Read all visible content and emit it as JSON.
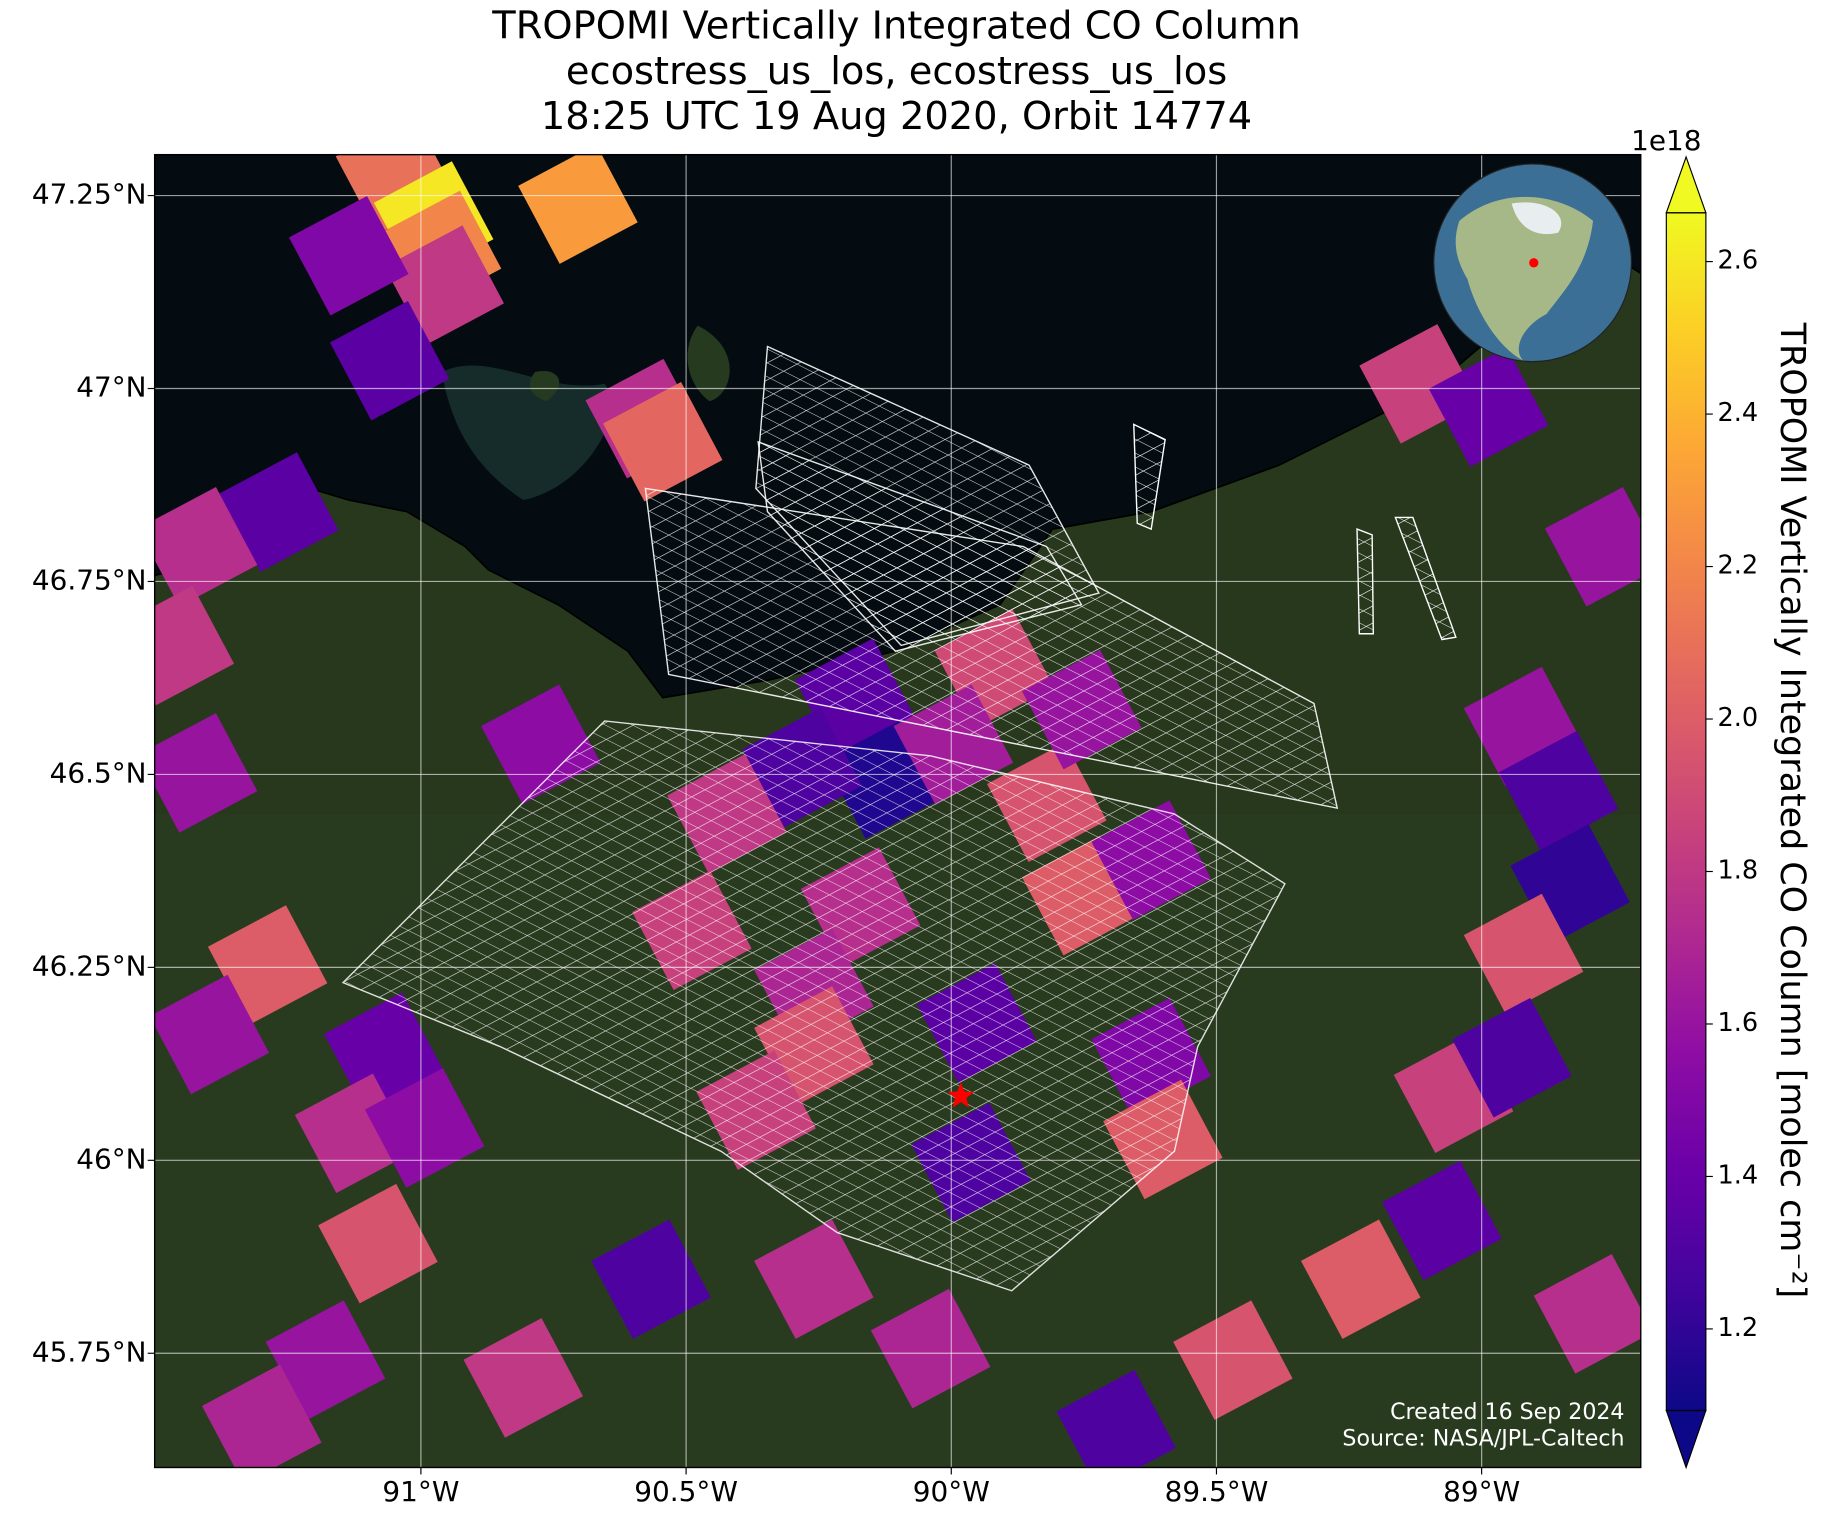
{
  "chart_data": {
    "type": "map",
    "title": [
      "TROPOMI Vertically Integrated CO Column",
      "ecostress_us_los, ecostress_us_los",
      "18:25 UTC 19 Aug 2020, Orbit 14774"
    ],
    "xlim": [
      -91.502,
      -88.7
    ],
    "ylim": [
      45.602,
      47.303
    ],
    "xticks": [
      {
        "value": -91,
        "label": "91°W"
      },
      {
        "value": -90.5,
        "label": "90.5°W"
      },
      {
        "value": -90,
        "label": "90°W"
      },
      {
        "value": -89.5,
        "label": "89.5°W"
      },
      {
        "value": -89,
        "label": "89°W"
      }
    ],
    "yticks": [
      {
        "value": 45.75,
        "label": "45.75°N"
      },
      {
        "value": 46,
        "label": "46°N"
      },
      {
        "value": 46.25,
        "label": "46.25°N"
      },
      {
        "value": 46.5,
        "label": "46.5°N"
      },
      {
        "value": 46.75,
        "label": "46.75°N"
      },
      {
        "value": 47,
        "label": "47°N"
      },
      {
        "value": 47.25,
        "label": "47.25°N"
      }
    ],
    "grid": true,
    "colormap": "plasma",
    "colorbar_label": "TROPOMI Vertically Integrated CO Column [molec cm⁻²]",
    "colorbar_offset": "1e18",
    "clim": [
      1.093,
      2.664
    ],
    "cticks": [
      1.2,
      1.4,
      1.6,
      1.8,
      {
        "value": 2,
        "label": "2.0"
      },
      2.2,
      2.4,
      2.6
    ],
    "site": {
      "lon": -89.982,
      "lat": 46.083,
      "color": "#ff0000"
    },
    "cells": [
      {
        "lon": -91.048,
        "lat": 47.277,
        "value": 2.1
      },
      {
        "lon": -90.976,
        "lat": 47.217,
        "value": 2.6
      },
      {
        "lon": -90.961,
        "lat": 47.179,
        "value": 2.2
      },
      {
        "lon": -90.956,
        "lat": 47.134,
        "value": 1.8
      },
      {
        "lon": -91.136,
        "lat": 47.172,
        "value": 1.5
      },
      {
        "lon": -91.059,
        "lat": 47.036,
        "value": 1.35
      },
      {
        "lon": -90.704,
        "lat": 47.239,
        "value": 2.3
      },
      {
        "lon": -90.577,
        "lat": 46.961,
        "value": 1.75
      },
      {
        "lon": -90.544,
        "lat": 46.931,
        "value": 2.05
      },
      {
        "lon": -91.268,
        "lat": 46.84,
        "value": 1.35
      },
      {
        "lon": -91.421,
        "lat": 46.795,
        "value": 1.75
      },
      {
        "lon": -91.465,
        "lat": 46.667,
        "value": 1.8
      },
      {
        "lon": -90.774,
        "lat": 46.539,
        "value": 1.55
      },
      {
        "lon": -91.421,
        "lat": 46.502,
        "value": 1.6
      },
      {
        "lon": -91.289,
        "lat": 46.253,
        "value": 2.0
      },
      {
        "lon": -91.399,
        "lat": 46.163,
        "value": 1.6
      },
      {
        "lon": -91.07,
        "lat": 46.14,
        "value": 1.4
      },
      {
        "lon": -91.125,
        "lat": 46.035,
        "value": 1.75
      },
      {
        "lon": -90.993,
        "lat": 46.042,
        "value": 1.55
      },
      {
        "lon": -91.081,
        "lat": 45.892,
        "value": 1.95
      },
      {
        "lon": -91.18,
        "lat": 45.741,
        "value": 1.6
      },
      {
        "lon": -91.3,
        "lat": 45.658,
        "value": 1.7
      },
      {
        "lon": -90.807,
        "lat": 45.718,
        "value": 1.8
      },
      {
        "lon": -90.182,
        "lat": 46.599,
        "value": 1.35
      },
      {
        "lon": -89.919,
        "lat": 46.637,
        "value": 1.9
      },
      {
        "lon": -90.127,
        "lat": 46.494,
        "value": 1.15
      },
      {
        "lon": -90.281,
        "lat": 46.509,
        "value": 1.3
      },
      {
        "lon": -90.423,
        "lat": 46.449,
        "value": 1.8
      },
      {
        "lon": -89.82,
        "lat": 46.464,
        "value": 1.95
      },
      {
        "lon": -89.996,
        "lat": 46.539,
        "value": 1.65
      },
      {
        "lon": -89.754,
        "lat": 46.584,
        "value": 1.6
      },
      {
        "lon": -90.489,
        "lat": 46.298,
        "value": 1.85
      },
      {
        "lon": -90.171,
        "lat": 46.328,
        "value": 1.75
      },
      {
        "lon": -89.754,
        "lat": 46.343,
        "value": 2.0
      },
      {
        "lon": -89.623,
        "lat": 46.389,
        "value": 1.55
      },
      {
        "lon": -90.259,
        "lat": 46.223,
        "value": 1.7
      },
      {
        "lon": -90.259,
        "lat": 46.148,
        "value": 1.95
      },
      {
        "lon": -90.368,
        "lat": 46.065,
        "value": 1.85
      },
      {
        "lon": -89.952,
        "lat": 46.178,
        "value": 1.35
      },
      {
        "lon": -89.963,
        "lat": 45.997,
        "value": 1.3
      },
      {
        "lon": -89.623,
        "lat": 46.133,
        "value": 1.5
      },
      {
        "lon": -89.601,
        "lat": 46.027,
        "value": 2.0
      },
      {
        "lon": -89.118,
        "lat": 47.006,
        "value": 1.85
      },
      {
        "lon": -88.987,
        "lat": 46.976,
        "value": 1.4
      },
      {
        "lon": -88.768,
        "lat": 46.795,
        "value": 1.6
      },
      {
        "lon": -88.921,
        "lat": 46.562,
        "value": 1.6
      },
      {
        "lon": -88.855,
        "lat": 46.479,
        "value": 1.3
      },
      {
        "lon": -88.833,
        "lat": 46.358,
        "value": 1.2
      },
      {
        "lon": -88.921,
        "lat": 46.268,
        "value": 1.95
      },
      {
        "lon": -89.053,
        "lat": 46.087,
        "value": 1.85
      },
      {
        "lon": -88.943,
        "lat": 46.133,
        "value": 1.3
      },
      {
        "lon": -89.075,
        "lat": 45.922,
        "value": 1.35
      },
      {
        "lon": -89.228,
        "lat": 45.846,
        "value": 2.0
      },
      {
        "lon": -89.469,
        "lat": 45.741,
        "value": 1.95
      },
      {
        "lon": -89.689,
        "lat": 45.651,
        "value": 1.3
      },
      {
        "lon": -90.566,
        "lat": 45.846,
        "value": 1.3
      },
      {
        "lon": -90.259,
        "lat": 45.846,
        "value": 1.75
      },
      {
        "lon": -90.039,
        "lat": 45.756,
        "value": 1.7
      },
      {
        "lon": -88.789,
        "lat": 45.801,
        "value": 1.75
      }
    ],
    "credits": [
      "Created 16 Sep 2024",
      "Source: NASA/JPL-Caltech"
    ]
  }
}
